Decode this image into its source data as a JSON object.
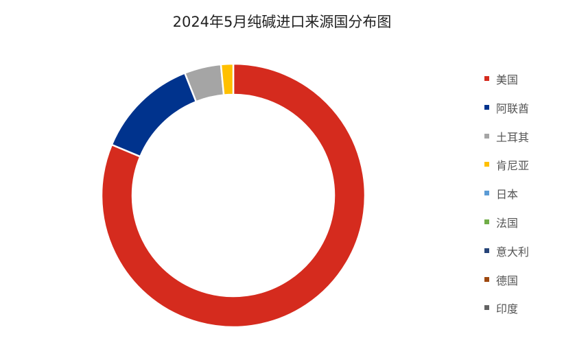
{
  "chart_data": {
    "type": "pie",
    "subtype": "donut",
    "title": "2024年5月纯碱进口来源国分布图",
    "legend_position": "right",
    "categories": [
      "美国",
      "阿联酋",
      "土耳其",
      "肯尼亚",
      "日本",
      "法国",
      "意大利",
      "德国",
      "印度"
    ],
    "values": [
      81.3,
      12.7,
      4.5,
      1.5,
      0,
      0,
      0,
      0,
      0
    ],
    "unit": "%",
    "colors": [
      "#D52B1E",
      "#00338D",
      "#A5A5A5",
      "#FFC000",
      "#5B9BD5",
      "#70AD47",
      "#264478",
      "#9E480E",
      "#636363"
    ]
  }
}
